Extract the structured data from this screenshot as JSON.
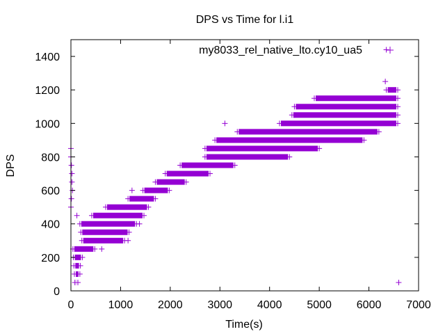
{
  "chart_data": {
    "type": "scatter",
    "title": "DPS vs Time for l.i1",
    "xlabel": "Time(s)",
    "ylabel": "DPS",
    "xlim": [
      0,
      7000
    ],
    "ylim": [
      0,
      1500
    ],
    "xticks": [
      0,
      1000,
      2000,
      3000,
      4000,
      5000,
      6000,
      7000
    ],
    "yticks": [
      0,
      200,
      400,
      600,
      800,
      1000,
      1200,
      1400
    ],
    "grid": false,
    "legend_position": "top-right",
    "marker": "plus",
    "color": "#9400d3",
    "series": [
      {
        "name": "my8033_rel_native_lto.cy10_ua5",
        "bands": [
          {
            "y": 50,
            "x": [
              80,
              140
            ]
          },
          {
            "y": 100,
            "x": [
              70,
              180
            ]
          },
          {
            "y": 150,
            "x": [
              60,
              190
            ]
          },
          {
            "y": 200,
            "x": [
              50,
              230
            ]
          },
          {
            "y": 250,
            "x": [
              40,
              480
            ]
          },
          {
            "y": 300,
            "x": [
              220,
              1080
            ]
          },
          {
            "y": 350,
            "x": [
              200,
              1170
            ]
          },
          {
            "y": 400,
            "x": [
              180,
              1320
            ]
          },
          {
            "y": 450,
            "x": [
              420,
              1470
            ]
          },
          {
            "y": 500,
            "x": [
              700,
              1560
            ]
          },
          {
            "y": 550,
            "x": [
              1150,
              1700
            ]
          },
          {
            "y": 600,
            "x": [
              1450,
              1980
            ]
          },
          {
            "y": 650,
            "x": [
              1700,
              2320
            ]
          },
          {
            "y": 700,
            "x": [
              1900,
              2800
            ]
          },
          {
            "y": 750,
            "x": [
              2200,
              3300
            ]
          },
          {
            "y": 800,
            "x": [
              2700,
              4400
            ]
          },
          {
            "y": 850,
            "x": [
              2700,
              5000
            ]
          },
          {
            "y": 900,
            "x": [
              2900,
              5900
            ]
          },
          {
            "y": 950,
            "x": [
              3350,
              6200
            ]
          },
          {
            "y": 1000,
            "x": [
              4200,
              6580
            ]
          },
          {
            "y": 1050,
            "x": [
              4450,
              6580
            ]
          },
          {
            "y": 1100,
            "x": [
              4500,
              6580
            ]
          },
          {
            "y": 1150,
            "x": [
              4900,
              6580
            ]
          },
          {
            "y": 1200,
            "x": [
              6350,
              6580
            ]
          }
        ],
        "outliers": [
          [
            0,
            850
          ],
          [
            0,
            800
          ],
          [
            10,
            750
          ],
          [
            20,
            700
          ],
          [
            20,
            650
          ],
          [
            30,
            600
          ],
          [
            10,
            550
          ],
          [
            0,
            500
          ],
          [
            120,
            450
          ],
          [
            1230,
            600
          ],
          [
            3100,
            1000
          ],
          [
            6330,
            1250
          ],
          [
            6350,
            1440
          ],
          [
            6600,
            50
          ],
          [
            620,
            250
          ],
          [
            1150,
            300
          ],
          [
            1380,
            400
          ]
        ]
      }
    ]
  }
}
